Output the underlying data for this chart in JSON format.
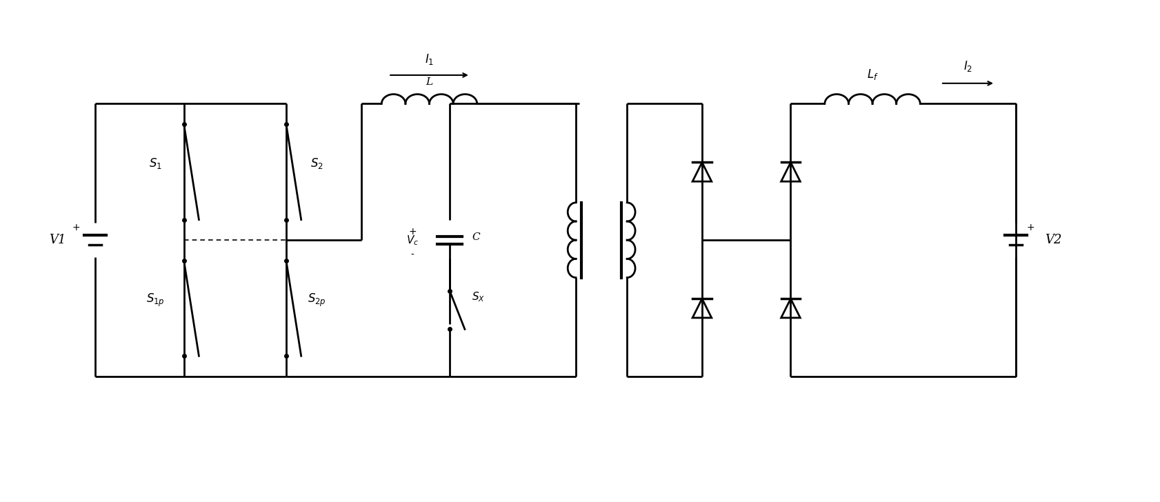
{
  "bg_color": "#ffffff",
  "line_color": "#000000",
  "line_width": 2.0,
  "fig_width": 16.83,
  "fig_height": 7.28,
  "dpi": 100,
  "xlim": [
    0,
    16.83
  ],
  "ylim": [
    0,
    7.28
  ]
}
